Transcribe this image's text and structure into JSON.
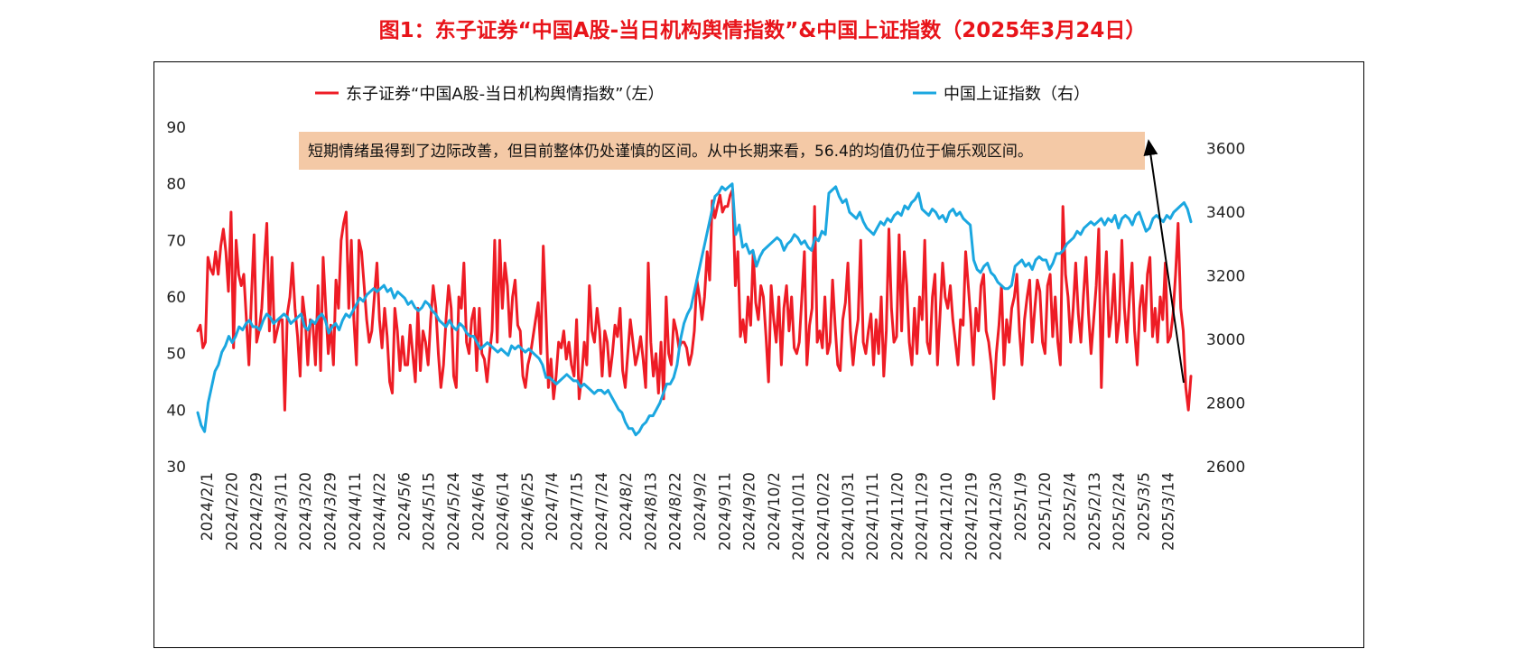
{
  "figure_title": "图1：东子证券“中国A股-当日机构舆情指数”&中国上证指数（2025年3月24日）",
  "colors": {
    "title": "#e8141a",
    "sentiment": "#ee1c25",
    "shanghai": "#1ba7e0",
    "annotation_bg": "#f4c9a6",
    "arrow": "#000000"
  },
  "annotation": {
    "text": "短期情绪虽得到了边际改善，但目前整体仍处谨慎的区间。从中长期来看，56.4的均值仍位于偏乐观区间。"
  },
  "chart_data": {
    "type": "line",
    "legend_position": "top",
    "grid": false,
    "x_tick_labels": [
      "2024/2/1",
      "2024/2/20",
      "2024/2/29",
      "2024/3/11",
      "2024/3/20",
      "2024/3/29",
      "2024/4/11",
      "2024/4/22",
      "2024/5/6",
      "2024/5/15",
      "2024/5/24",
      "2024/6/4",
      "2024/6/14",
      "2024/6/25",
      "2024/7/4",
      "2024/7/15",
      "2024/7/24",
      "2024/8/2",
      "2024/8/13",
      "2024/8/22",
      "2024/9/2",
      "2024/9/11",
      "2024/9/20",
      "2024/10/2",
      "2024/10/11",
      "2024/10/22",
      "2024/10/31",
      "2024/11/11",
      "2024/11/20",
      "2024/11/29",
      "2024/12/10",
      "2024/12/19",
      "2024/12/30",
      "2025/1/9",
      "2025/1/20",
      "2025/2/4",
      "2025/2/13",
      "2025/2/24",
      "2025/3/5",
      "2025/3/14"
    ],
    "y_left": {
      "min": 30,
      "max": 90,
      "ticks": [
        30,
        40,
        50,
        60,
        70,
        80,
        90
      ]
    },
    "y_right": {
      "min": 2600,
      "max": 3650,
      "ticks": [
        2600,
        2800,
        3000,
        3200,
        3400,
        3600
      ]
    },
    "series": [
      {
        "name": "东子证券“中国A股-当日机构舆情指数”（左）",
        "axis": "left",
        "values": [
          54,
          55,
          51,
          52,
          67,
          65,
          64,
          68,
          64,
          69,
          72,
          68,
          61,
          75,
          51,
          70,
          64,
          62,
          64,
          56,
          48,
          60,
          71,
          52,
          54,
          58,
          66,
          73,
          54,
          67,
          52,
          54,
          56,
          56,
          40,
          57,
          60,
          66,
          58,
          53,
          46,
          60,
          56,
          48,
          56,
          55,
          48,
          62,
          47,
          67,
          58,
          50,
          55,
          48,
          63,
          58,
          70,
          73,
          75,
          58,
          70,
          56,
          48,
          70,
          68,
          62,
          56,
          52,
          54,
          60,
          66,
          56,
          51,
          58,
          53,
          45,
          43,
          58,
          54,
          47,
          53,
          48,
          48,
          55,
          50,
          45,
          58,
          47,
          54,
          52,
          48,
          56,
          62,
          58,
          50,
          44,
          48,
          56,
          62,
          58,
          46,
          44,
          60,
          58,
          66,
          52,
          50,
          56,
          58,
          47,
          58,
          50,
          49,
          45,
          50,
          54,
          70,
          52,
          70,
          58,
          66,
          62,
          53,
          60,
          63,
          55,
          54,
          46,
          44,
          48,
          50,
          53,
          56,
          59,
          50,
          69,
          57,
          44,
          49,
          42,
          46,
          52,
          51,
          54,
          49,
          52,
          48,
          46,
          56,
          42,
          46,
          52,
          48,
          62,
          54,
          52,
          58,
          54,
          46,
          54,
          52,
          46,
          50,
          55,
          53,
          58,
          47,
          44,
          50,
          56,
          52,
          48,
          50,
          53,
          49,
          44,
          66,
          52,
          46,
          50,
          43,
          52,
          42,
          60,
          50,
          48,
          56,
          54,
          51,
          52,
          52,
          51,
          48,
          50,
          54,
          63,
          60,
          56,
          60,
          68,
          63,
          77,
          74,
          76,
          78,
          75,
          76,
          76,
          78,
          79,
          62,
          68,
          53,
          56,
          52,
          60,
          55,
          68,
          59,
          56,
          62,
          60,
          53,
          45,
          62,
          56,
          52,
          60,
          48,
          58,
          62,
          54,
          60,
          51,
          50,
          52,
          60,
          68,
          48,
          55,
          58,
          76,
          52,
          54,
          51,
          60,
          50,
          52,
          63,
          55,
          48,
          47,
          56,
          59,
          66,
          54,
          48,
          53,
          56,
          70,
          52,
          50,
          54,
          57,
          48,
          56,
          50,
          60,
          46,
          54,
          72,
          58,
          52,
          53,
          71,
          54,
          68,
          62,
          52,
          48,
          58,
          50,
          60,
          56,
          70,
          52,
          50,
          60,
          64,
          48,
          57,
          66,
          60,
          58,
          62,
          56,
          52,
          48,
          56,
          55,
          68,
          62,
          56,
          48,
          58,
          54,
          62,
          64,
          54,
          52,
          48,
          42,
          50,
          55,
          62,
          48,
          56,
          52,
          58,
          60,
          64,
          54,
          48,
          56,
          60,
          63,
          52,
          58,
          63,
          61,
          52,
          50,
          62,
          64,
          53,
          60,
          52,
          48,
          76,
          64,
          60,
          52,
          58,
          66,
          57,
          52,
          60,
          67,
          57,
          50,
          56,
          62,
          72,
          44,
          60,
          68,
          53,
          57,
          64,
          52,
          56,
          70,
          58,
          52,
          60,
          66,
          54,
          48,
          58,
          62,
          54,
          64,
          67,
          53,
          58,
          52,
          60,
          56,
          66,
          52,
          53,
          57,
          64,
          73,
          58,
          54,
          44,
          40,
          46
        ]
      },
      {
        "name": "中国上证指数（右）",
        "axis": "right",
        "values": [
          2770,
          2730,
          2710,
          2800,
          2850,
          2900,
          2920,
          2960,
          2980,
          3010,
          2990,
          3010,
          3040,
          3030,
          3050,
          3060,
          3040,
          3040,
          3030,
          3060,
          3080,
          3070,
          3050,
          3060,
          3070,
          3080,
          3070,
          3050,
          3060,
          3070,
          3080,
          3040,
          3030,
          3060,
          3050,
          3070,
          3080,
          3060,
          3020,
          3040,
          3050,
          3030,
          3060,
          3080,
          3070,
          3090,
          3110,
          3130,
          3120,
          3140,
          3150,
          3160,
          3150,
          3160,
          3170,
          3150,
          3160,
          3130,
          3150,
          3140,
          3130,
          3110,
          3120,
          3100,
          3090,
          3100,
          3120,
          3110,
          3090,
          3080,
          3060,
          3050,
          3040,
          3060,
          3040,
          3030,
          3050,
          3040,
          3020,
          3010,
          3010,
          2990,
          2970,
          2980,
          2990,
          2980,
          2970,
          2960,
          2970,
          2960,
          2950,
          2980,
          2970,
          2980,
          2970,
          2960,
          2970,
          2960,
          2950,
          2940,
          2920,
          2880,
          2880,
          2870,
          2860,
          2870,
          2880,
          2890,
          2880,
          2870,
          2870,
          2850,
          2860,
          2850,
          2840,
          2830,
          2840,
          2840,
          2830,
          2840,
          2820,
          2800,
          2780,
          2770,
          2740,
          2720,
          2720,
          2700,
          2710,
          2730,
          2740,
          2760,
          2760,
          2780,
          2800,
          2830,
          2860,
          2860,
          2880,
          2920,
          3000,
          3050,
          3080,
          3100,
          3150,
          3200,
          3250,
          3300,
          3350,
          3400,
          3450,
          3460,
          3480,
          3470,
          3480,
          3489,
          3330,
          3360,
          3290,
          3300,
          3270,
          3280,
          3230,
          3260,
          3280,
          3290,
          3300,
          3310,
          3320,
          3310,
          3280,
          3300,
          3310,
          3330,
          3320,
          3300,
          3310,
          3290,
          3280,
          3320,
          3310,
          3340,
          3330,
          3460,
          3470,
          3480,
          3450,
          3430,
          3440,
          3400,
          3390,
          3380,
          3400,
          3370,
          3350,
          3340,
          3330,
          3350,
          3370,
          3360,
          3380,
          3370,
          3390,
          3400,
          3390,
          3420,
          3410,
          3430,
          3440,
          3460,
          3410,
          3400,
          3390,
          3410,
          3400,
          3380,
          3390,
          3370,
          3400,
          3410,
          3390,
          3400,
          3380,
          3370,
          3360,
          3250,
          3220,
          3210,
          3230,
          3240,
          3210,
          3200,
          3180,
          3170,
          3160,
          3160,
          3170,
          3230,
          3240,
          3250,
          3230,
          3240,
          3220,
          3250,
          3260,
          3250,
          3250,
          3220,
          3240,
          3270,
          3270,
          3280,
          3300,
          3310,
          3320,
          3340,
          3330,
          3350,
          3360,
          3370,
          3360,
          3370,
          3380,
          3360,
          3380,
          3370,
          3390,
          3350,
          3380,
          3390,
          3380,
          3360,
          3390,
          3400,
          3370,
          3340,
          3350,
          3380,
          3390,
          3380,
          3370,
          3390,
          3380,
          3400,
          3410,
          3420,
          3430,
          3410,
          3370
        ]
      }
    ]
  }
}
